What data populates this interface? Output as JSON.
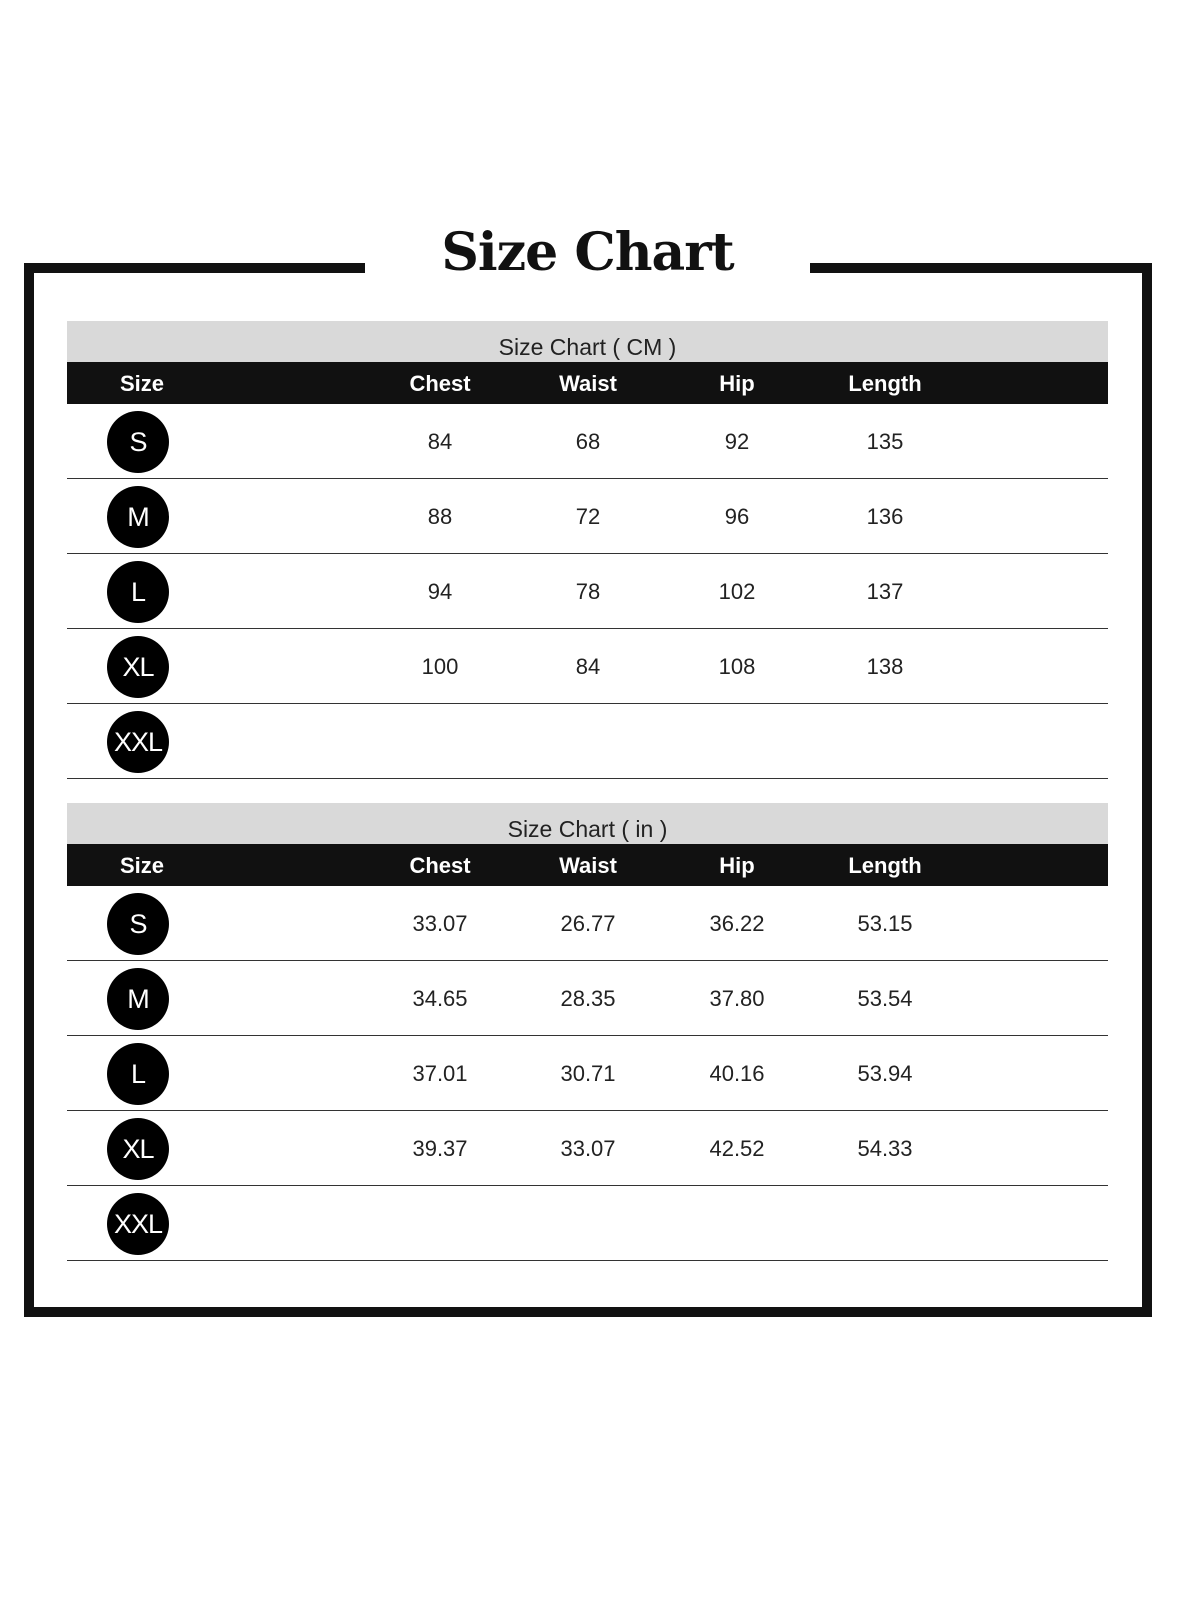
{
  "title": "Size Chart",
  "tables": [
    {
      "caption": "Size Chart ( CM )",
      "headers": [
        "Size",
        "Chest",
        "Waist",
        "Hip",
        "Length"
      ],
      "rows": [
        {
          "size": "S",
          "values": [
            "84",
            "68",
            "92",
            "135"
          ]
        },
        {
          "size": "M",
          "values": [
            "88",
            "72",
            "96",
            "136"
          ]
        },
        {
          "size": "L",
          "values": [
            "94",
            "78",
            "102",
            "137"
          ]
        },
        {
          "size": "XL",
          "values": [
            "100",
            "84",
            "108",
            "138"
          ]
        },
        {
          "size": "XXL",
          "values": [
            "",
            "",
            "",
            ""
          ]
        }
      ]
    },
    {
      "caption": "Size Chart ( in )",
      "headers": [
        "Size",
        "Chest",
        "Waist",
        "Hip",
        "Length"
      ],
      "rows": [
        {
          "size": "S",
          "values": [
            "33.07",
            "26.77",
            "36.22",
            "53.15"
          ]
        },
        {
          "size": "M",
          "values": [
            "34.65",
            "28.35",
            "37.80",
            "53.54"
          ]
        },
        {
          "size": "L",
          "values": [
            "37.01",
            "30.71",
            "40.16",
            "53.94"
          ]
        },
        {
          "size": "XL",
          "values": [
            "39.37",
            "33.07",
            "42.52",
            "54.33"
          ]
        },
        {
          "size": "XXL",
          "values": [
            "",
            "",
            "",
            ""
          ]
        }
      ]
    }
  ]
}
